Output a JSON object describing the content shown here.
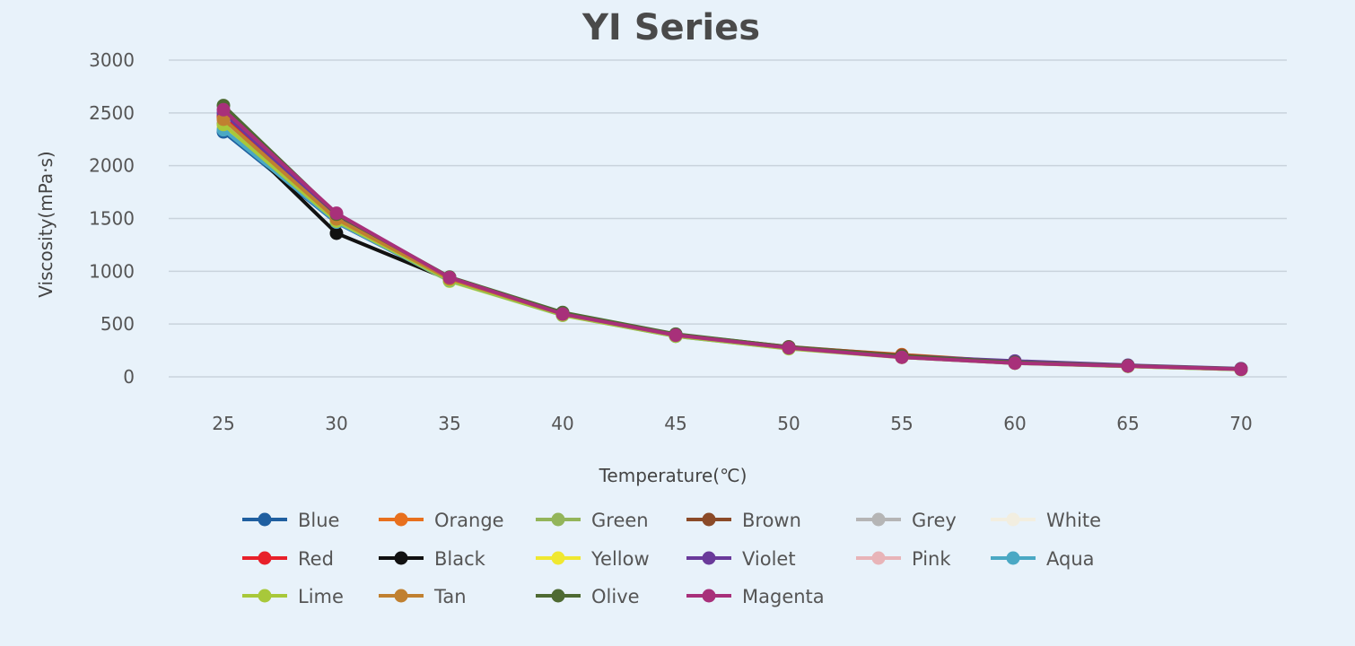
{
  "chart_data": {
    "type": "line",
    "title": "YI Series",
    "xlabel": "Temperature(℃)",
    "ylabel": "Viscosity(mPa·s)",
    "x": [
      25,
      30,
      35,
      40,
      45,
      50,
      55,
      60,
      65,
      70
    ],
    "ylim": [
      0,
      3000
    ],
    "yticks": [
      0,
      500,
      1000,
      1500,
      2000,
      2500,
      3000
    ],
    "grid": true,
    "legend": "bottom",
    "series": [
      {
        "name": "Blue",
        "color": "#1f5fa0",
        "values": [
          2320,
          1460,
          910,
          585,
          385,
          268,
          185,
          130,
          100,
          70
        ]
      },
      {
        "name": "Orange",
        "color": "#e8701e",
        "values": [
          2450,
          1500,
          930,
          595,
          395,
          280,
          210,
          140,
          105,
          75
        ]
      },
      {
        "name": "Green",
        "color": "#93b55a",
        "values": [
          2480,
          1510,
          935,
          600,
          398,
          278,
          195,
          135,
          105,
          72
        ]
      },
      {
        "name": "Brown",
        "color": "#8b4a28",
        "values": [
          2460,
          1500,
          930,
          598,
          400,
          285,
          205,
          140,
          106,
          74
        ]
      },
      {
        "name": "Grey",
        "color": "#b5b5b5",
        "values": [
          2400,
          1480,
          915,
          588,
          388,
          270,
          188,
          132,
          100,
          70
        ]
      },
      {
        "name": "White",
        "color": "#f2eee0",
        "values": [
          2380,
          1470,
          912,
          585,
          386,
          268,
          186,
          130,
          100,
          70
        ]
      },
      {
        "name": "Red",
        "color": "#e8202a",
        "values": [
          2470,
          1505,
          932,
          597,
          398,
          282,
          200,
          138,
          105,
          73
        ]
      },
      {
        "name": "Black",
        "color": "#111111",
        "values": [
          2400,
          1360,
          920,
          590,
          390,
          272,
          190,
          133,
          101,
          71
        ]
      },
      {
        "name": "Yellow",
        "color": "#f0e830",
        "values": [
          2360,
          1470,
          905,
          582,
          384,
          266,
          184,
          129,
          99,
          69
        ]
      },
      {
        "name": "Violet",
        "color": "#6a3a9a",
        "values": [
          2500,
          1520,
          940,
          602,
          402,
          280,
          195,
          150,
          110,
          78
        ]
      },
      {
        "name": "Pink",
        "color": "#e8b4b8",
        "values": [
          2420,
          1490,
          920,
          590,
          390,
          272,
          190,
          133,
          101,
          71
        ]
      },
      {
        "name": "Aqua",
        "color": "#4aa8c4",
        "values": [
          2340,
          1465,
          910,
          584,
          385,
          268,
          186,
          130,
          100,
          70
        ]
      },
      {
        "name": "Lime",
        "color": "#a8c83a",
        "values": [
          2390,
          1475,
          915,
          586,
          387,
          269,
          187,
          131,
          100,
          70
        ]
      },
      {
        "name": "Tan",
        "color": "#c08030",
        "values": [
          2440,
          1495,
          928,
          594,
          394,
          276,
          194,
          135,
          103,
          72
        ]
      },
      {
        "name": "Olive",
        "color": "#4e6a32",
        "values": [
          2570,
          1540,
          945,
          610,
          405,
          283,
          198,
          137,
          105,
          74
        ]
      },
      {
        "name": "Magenta",
        "color": "#a8307a",
        "values": [
          2530,
          1550,
          940,
          595,
          395,
          275,
          185,
          130,
          102,
          72
        ]
      }
    ]
  }
}
